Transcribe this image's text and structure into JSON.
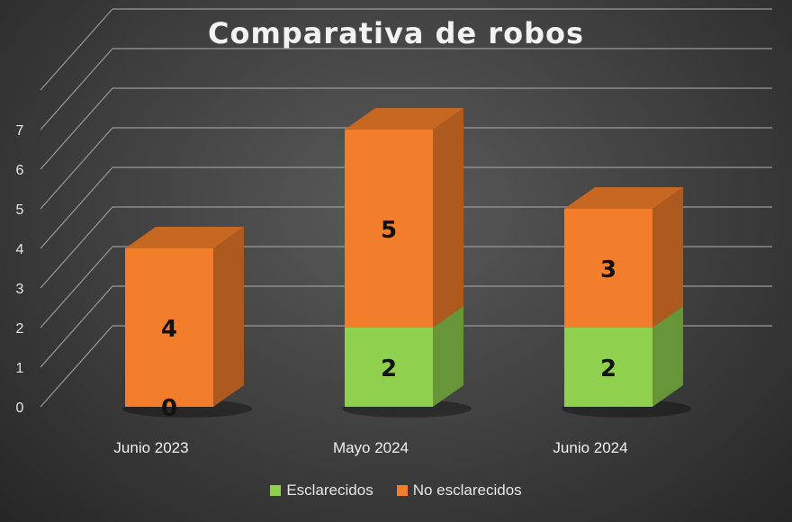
{
  "chart_data": {
    "type": "bar",
    "stacked": true,
    "three_d": true,
    "title": "Comparativa de robos",
    "categories": [
      "Junio 2023",
      "Mayo 2024",
      "Junio 2024"
    ],
    "series": [
      {
        "name": "Esclarecidos",
        "values": [
          0,
          2,
          2
        ],
        "color": "#8fd14f"
      },
      {
        "name": "No esclarecidos",
        "values": [
          4,
          5,
          3
        ],
        "color": "#f27d2a"
      }
    ],
    "ylim": [
      0,
      8
    ],
    "yticks": [
      0,
      1,
      2,
      3,
      4,
      5,
      6,
      7
    ],
    "grid": true,
    "legend_position": "bottom",
    "background": "#3e3e3e"
  }
}
